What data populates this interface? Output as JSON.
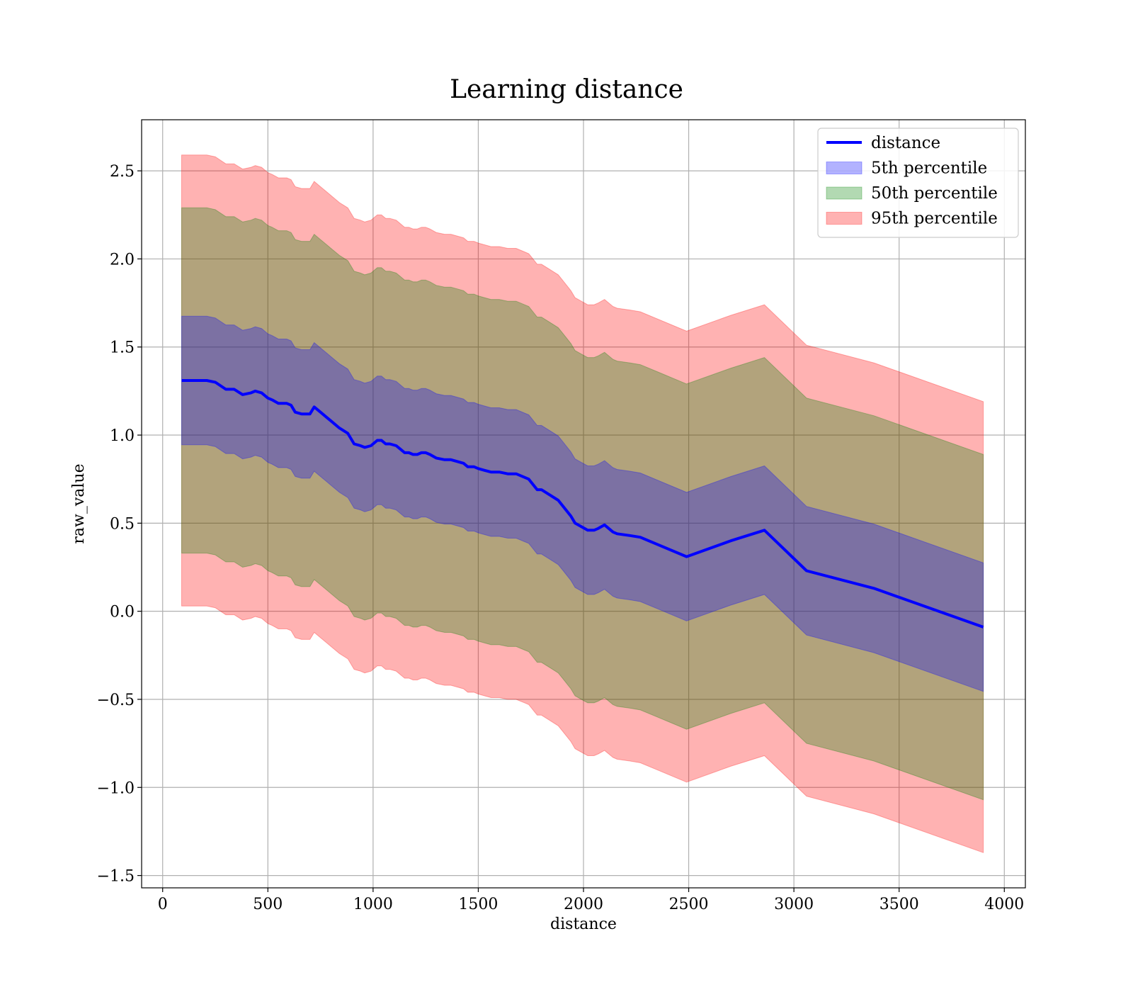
{
  "chart_data": {
    "type": "line",
    "title": "Learning distance",
    "xlabel": "distance",
    "ylabel": "raw_value",
    "xlim": [
      -100,
      4100
    ],
    "ylim": [
      -1.57,
      2.79
    ],
    "xticks": [
      0,
      500,
      1000,
      1500,
      2000,
      2500,
      3000,
      3500,
      4000
    ],
    "xtick_labels": [
      "0",
      "500",
      "1000",
      "1500",
      "2000",
      "2500",
      "3000",
      "3500",
      "4000"
    ],
    "yticks": [
      -1.5,
      -1.0,
      -0.5,
      0.0,
      0.5,
      1.0,
      1.5,
      2.0,
      2.5
    ],
    "ytick_labels": [
      "−1.5",
      "−1.0",
      "−0.5",
      "0.0",
      "0.5",
      "1.0",
      "1.5",
      "2.0",
      "2.5"
    ],
    "grid": true,
    "legend_position": "top-right",
    "x": [
      90,
      150,
      210,
      250,
      300,
      340,
      380,
      420,
      440,
      470,
      500,
      520,
      550,
      570,
      590,
      610,
      630,
      660,
      700,
      720,
      750,
      780,
      800,
      840,
      880,
      910,
      940,
      960,
      990,
      1020,
      1040,
      1060,
      1080,
      1110,
      1130,
      1150,
      1170,
      1190,
      1210,
      1230,
      1250,
      1270,
      1300,
      1340,
      1370,
      1400,
      1430,
      1450,
      1480,
      1500,
      1530,
      1560,
      1600,
      1640,
      1660,
      1680,
      1720,
      1740,
      1760,
      1780,
      1800,
      1840,
      1880,
      1900,
      1940,
      1960,
      1990,
      2020,
      2050,
      2070,
      2100,
      2140,
      2160,
      2220,
      2270,
      2350,
      2490,
      2700,
      2860,
      3060,
      3380,
      3900
    ],
    "series": [
      {
        "name": "distance",
        "color": "#0000ff",
        "values": [
          1.31,
          1.31,
          1.31,
          1.3,
          1.26,
          1.26,
          1.23,
          1.24,
          1.25,
          1.24,
          1.21,
          1.2,
          1.18,
          1.18,
          1.18,
          1.17,
          1.13,
          1.12,
          1.12,
          1.16,
          1.13,
          1.1,
          1.08,
          1.04,
          1.01,
          0.95,
          0.94,
          0.93,
          0.94,
          0.97,
          0.97,
          0.95,
          0.95,
          0.94,
          0.92,
          0.9,
          0.9,
          0.89,
          0.89,
          0.9,
          0.9,
          0.89,
          0.87,
          0.86,
          0.86,
          0.85,
          0.84,
          0.82,
          0.82,
          0.81,
          0.8,
          0.79,
          0.79,
          0.78,
          0.78,
          0.78,
          0.76,
          0.75,
          0.72,
          0.69,
          0.69,
          0.66,
          0.63,
          0.6,
          0.54,
          0.5,
          0.48,
          0.46,
          0.46,
          0.47,
          0.49,
          0.45,
          0.44,
          0.43,
          0.42,
          0.38,
          0.31,
          0.4,
          0.46,
          0.23,
          0.13,
          -0.09
        ]
      },
      {
        "name": "5th percentile",
        "color": "#0000ff",
        "offset_low": -0.365,
        "offset_high": 0.365
      },
      {
        "name": "50th percentile",
        "color": "#008000",
        "offset_low": -0.98,
        "offset_high": 0.98
      },
      {
        "name": "95th percentile",
        "color": "#ff0000",
        "offset_low": -1.28,
        "offset_high": 1.28
      }
    ]
  }
}
